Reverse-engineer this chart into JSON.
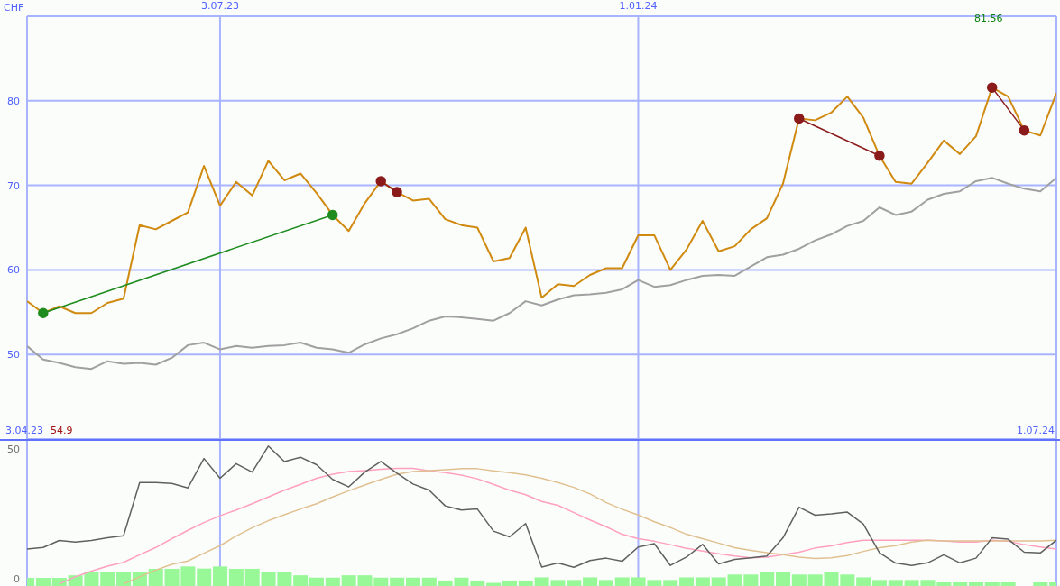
{
  "chart_data": [
    {
      "type": "line",
      "ylabel": "CHF",
      "x": [
        "2023-04-10",
        "2023-04-17",
        "2023-04-24",
        "2023-05-01",
        "2023-05-08",
        "2023-05-15",
        "2023-05-22",
        "2023-05-29",
        "2023-06-05",
        "2023-06-12",
        "2023-06-19",
        "2023-06-26",
        "2023-07-03",
        "2023-07-10",
        "2023-07-17",
        "2023-07-24",
        "2023-07-31",
        "2023-08-07",
        "2023-08-14",
        "2023-08-21",
        "2023-08-28",
        "2023-09-04",
        "2023-09-11",
        "2023-09-18",
        "2023-09-25",
        "2023-10-02",
        "2023-10-09",
        "2023-10-16",
        "2023-10-23",
        "2023-10-30",
        "2023-11-06",
        "2023-11-13",
        "2023-11-20",
        "2023-11-27",
        "2023-12-04",
        "2023-12-11",
        "2023-12-18",
        "2023-12-25",
        "2024-01-01",
        "2024-01-08",
        "2024-01-15",
        "2024-01-22",
        "2024-01-29",
        "2024-02-05",
        "2024-02-12",
        "2024-02-19",
        "2024-02-26",
        "2024-03-04",
        "2024-03-11",
        "2024-03-18",
        "2024-03-25",
        "2024-04-01",
        "2024-04-08",
        "2024-04-15",
        "2024-04-22",
        "2024-04-29",
        "2024-05-06",
        "2024-05-13",
        "2024-05-20",
        "2024-05-27",
        "2024-06-03",
        "2024-06-10",
        "2024-06-17",
        "2024-06-24",
        "2024-07-01"
      ],
      "series": [
        {
          "color": "#a0a0a0",
          "values": [
            51.0,
            49.4,
            49.0,
            48.5,
            48.3,
            49.2,
            48.9,
            49.0,
            48.8,
            49.6,
            51.1,
            51.4,
            50.6,
            51.0,
            50.8,
            51.0,
            51.1,
            51.4,
            50.8,
            50.6,
            50.2,
            51.2,
            51.9,
            52.4,
            53.1,
            54.0,
            54.5,
            54.4,
            54.2,
            54.0,
            54.9,
            56.3,
            55.8,
            56.5,
            57.0,
            57.1,
            57.3,
            57.7,
            58.8,
            58.0,
            58.2,
            58.8,
            59.3,
            59.4,
            59.3,
            60.4,
            61.5,
            61.8,
            62.5,
            63.5,
            64.2,
            65.2,
            65.8,
            67.4,
            66.5,
            66.9,
            68.3,
            69.0,
            69.3,
            70.5,
            70.9,
            70.2,
            69.6,
            69.3,
            70.9
          ]
        },
        {
          "color": "#d08a10",
          "values": [
            56.3,
            54.9,
            55.7,
            54.9,
            54.9,
            56.1,
            56.6,
            65.3,
            64.8,
            65.8,
            66.8,
            72.3,
            67.6,
            70.4,
            68.8,
            72.9,
            70.6,
            71.4,
            69.1,
            66.5,
            64.6,
            67.9,
            70.5,
            69.2,
            68.2,
            68.4,
            66.0,
            65.3,
            65.0,
            61.0,
            61.4,
            65.0,
            56.7,
            58.3,
            58.1,
            59.4,
            60.2,
            60.2,
            64.1,
            64.1,
            60.0,
            62.4,
            65.8,
            62.2,
            62.8,
            64.8,
            66.1,
            70.2,
            77.9,
            77.7,
            78.6,
            80.5,
            78.0,
            73.5,
            70.4,
            70.2,
            72.7,
            75.3,
            73.7,
            75.8,
            81.56,
            80.5,
            76.5,
            75.9,
            80.9
          ]
        },
        {
          "color": "#1e8c1e",
          "marker": "circle",
          "x": [
            "2023-04-17",
            "2023-08-21"
          ],
          "values": [
            54.9,
            66.5
          ]
        },
        {
          "color": "#8b1a1a",
          "marker": "circle",
          "x": [
            "2023-09-11",
            "2023-09-18"
          ],
          "values": [
            70.5,
            69.2
          ]
        },
        {
          "color": "#8b1a1a",
          "marker": "circle",
          "x": [
            "2024-03-11",
            "2024-04-15"
          ],
          "values": [
            77.9,
            73.5
          ]
        },
        {
          "color": "#8b1a1a",
          "marker": "circle",
          "x": [
            "2024-06-03",
            "2024-06-17"
          ],
          "values": [
            81.56,
            76.5
          ]
        }
      ],
      "xlim": [
        "2023-04-10",
        "2024-07-01"
      ],
      "xticks": [
        {
          "value": "2023-07-03",
          "label": "3.07.23"
        },
        {
          "value": "2024-01-01",
          "label": "1.01.24"
        }
      ],
      "ylim": [
        40,
        90
      ],
      "yticks": [
        50,
        60,
        70,
        80
      ],
      "grid": true,
      "annotations": [
        "3.04.23",
        "54.9",
        "81.56",
        "1.07.24"
      ]
    },
    {
      "type": "line",
      "tick_labels": "y",
      "x": [
        "2023-04-10",
        "2023-04-17",
        "2023-04-24",
        "2023-05-01",
        "2023-05-08",
        "2023-05-15",
        "2023-05-22",
        "2023-05-29",
        "2023-06-05",
        "2023-06-12",
        "2023-06-19",
        "2023-06-26",
        "2023-07-03",
        "2023-07-10",
        "2023-07-17",
        "2023-07-24",
        "2023-07-31",
        "2023-08-07",
        "2023-08-14",
        "2023-08-21",
        "2023-08-28",
        "2023-09-04",
        "2023-09-11",
        "2023-09-18",
        "2023-09-25",
        "2023-10-02",
        "2023-10-09",
        "2023-10-16",
        "2023-10-23",
        "2023-10-30",
        "2023-11-06",
        "2023-11-13",
        "2023-11-20",
        "2023-11-27",
        "2023-12-04",
        "2023-12-11",
        "2023-12-18",
        "2023-12-25",
        "2024-01-01",
        "2024-01-08",
        "2024-01-15",
        "2024-01-22",
        "2024-01-29",
        "2024-02-05",
        "2024-02-12",
        "2024-02-19",
        "2024-02-26",
        "2024-03-04",
        "2024-03-11",
        "2024-03-18",
        "2024-03-25",
        "2024-04-01",
        "2024-04-08",
        "2024-04-15",
        "2024-04-22",
        "2024-04-29",
        "2024-05-06",
        "2024-05-13",
        "2024-05-20",
        "2024-05-27",
        "2024-06-03",
        "2024-06-10",
        "2024-06-17",
        "2024-06-24",
        "2024-07-01"
      ],
      "series": [
        {
          "type": "bar",
          "color": "#98f898",
          "base": [
            -3,
            -3,
            -3,
            -3,
            -3,
            -3,
            -3,
            -3,
            -3,
            -3,
            -3,
            -3,
            -3,
            -3,
            -3,
            -3,
            -3,
            -3,
            -3,
            -3,
            -3,
            -3,
            -3,
            -3,
            -3,
            -3,
            -3,
            -3,
            -3,
            -3,
            -3,
            -3,
            -3,
            -3,
            -3,
            -3,
            -3,
            -3,
            -3,
            -3,
            -3,
            -3,
            -3,
            -3,
            -3,
            -3,
            -3,
            -3,
            -3,
            -3,
            -3,
            -3,
            -3,
            -3,
            -3,
            -3,
            -3,
            -3,
            -3,
            -3,
            -3,
            -3,
            null,
            -3,
            -3
          ],
          "values": [
            3.3,
            3.3,
            3.3,
            4.3,
            5.4,
            5.4,
            5.4,
            5.4,
            6.8,
            6.8,
            7.7,
            6.9,
            7.7,
            6.8,
            6.8,
            5.4,
            5.4,
            4.3,
            3.4,
            3.4,
            4.3,
            4.3,
            3.4,
            3.4,
            3.4,
            3.4,
            2.3,
            3.4,
            2.3,
            1.4,
            2.3,
            2.3,
            3.5,
            2.5,
            2.5,
            3.5,
            2.5,
            3.5,
            3.5,
            2.5,
            2.5,
            3.5,
            3.5,
            3.5,
            4.6,
            4.6,
            5.5,
            5.5,
            4.6,
            4.6,
            5.5,
            4.6,
            3.5,
            2.5,
            2.5,
            2.5,
            2.5,
            1.6,
            1.6,
            1.6,
            1.6,
            1.6,
            null,
            1.6,
            1.6
          ]
        },
        {
          "color": "#ffa0c0",
          "values": [
            null,
            null,
            -2.0,
            0.7,
            2.9,
            4.8,
            6.3,
            9.2,
            12.0,
            15.4,
            18.6,
            21.6,
            24.2,
            26.4,
            28.8,
            31.4,
            34.0,
            36.3,
            38.6,
            40.2,
            41.2,
            41.6,
            42.1,
            42.4,
            42.4,
            41.5,
            40.8,
            39.8,
            38.4,
            36.3,
            34.0,
            32.3,
            29.7,
            28.2,
            25.4,
            22.6,
            20.0,
            17.1,
            15.4,
            14.4,
            13.1,
            11.7,
            10.6,
            9.6,
            8.7,
            8.0,
            8.3,
            9.2,
            10.2,
            11.8,
            12.6,
            13.9,
            14.8,
            14.8,
            14.8,
            14.8,
            14.8,
            14.5,
            14.1,
            14.1,
            14.8,
            14.4,
            13.1,
            12.2,
            11.4
          ]
        },
        {
          "color": "#e0c090",
          "values": [
            null,
            null,
            null,
            null,
            null,
            null,
            -2.0,
            0.7,
            3.3,
            5.5,
            6.8,
            9.8,
            12.7,
            16.4,
            19.6,
            22.3,
            24.6,
            26.8,
            28.8,
            31.4,
            33.8,
            36.0,
            38.2,
            40.2,
            41.2,
            41.6,
            41.9,
            42.3,
            42.3,
            41.5,
            40.8,
            39.9,
            38.6,
            37.0,
            35.1,
            32.6,
            29.3,
            26.7,
            24.5,
            21.9,
            19.7,
            17.1,
            15.4,
            13.7,
            11.9,
            10.9,
            10.0,
            9.2,
            8.3,
            7.8,
            8.0,
            8.9,
            10.5,
            11.9,
            12.7,
            14.1,
            14.8,
            14.5,
            14.5,
            14.5,
            14.5,
            14.5,
            14.5,
            14.5,
            14.8
          ]
        },
        {
          "color": "#606060",
          "values": [
            11.4,
            12.0,
            14.7,
            14.1,
            14.7,
            15.7,
            16.5,
            37.0,
            37.0,
            36.6,
            34.9,
            46.2,
            38.6,
            44.2,
            41.0,
            51.0,
            45.0,
            46.7,
            43.8,
            38.2,
            35.3,
            41.0,
            45.1,
            40.6,
            36.4,
            34.0,
            28.0,
            26.4,
            26.8,
            18.3,
            16.1,
            21.2,
            4.5,
            6.0,
            4.4,
            7.0,
            7.9,
            6.7,
            12.2,
            13.5,
            5.1,
            8.3,
            13.2,
            5.7,
            7.4,
            8.0,
            8.7,
            15.7,
            27.5,
            24.4,
            24.9,
            25.6,
            21.0,
            10.0,
            6.0,
            5.1,
            6.1,
            9.2,
            6.1,
            7.9,
            15.7,
            15.2,
            10.2,
            9.9,
            14.8
          ]
        }
      ],
      "xlim": [
        "2023-04-10",
        "2024-07-01"
      ],
      "xticks": [
        {
          "value": "2023-07-03",
          "label": null
        },
        {
          "value": "2024-01-01",
          "label": null
        }
      ],
      "ylim": [
        -3.5,
        53
      ],
      "yticks": [
        0,
        50
      ],
      "grid": "x"
    }
  ]
}
